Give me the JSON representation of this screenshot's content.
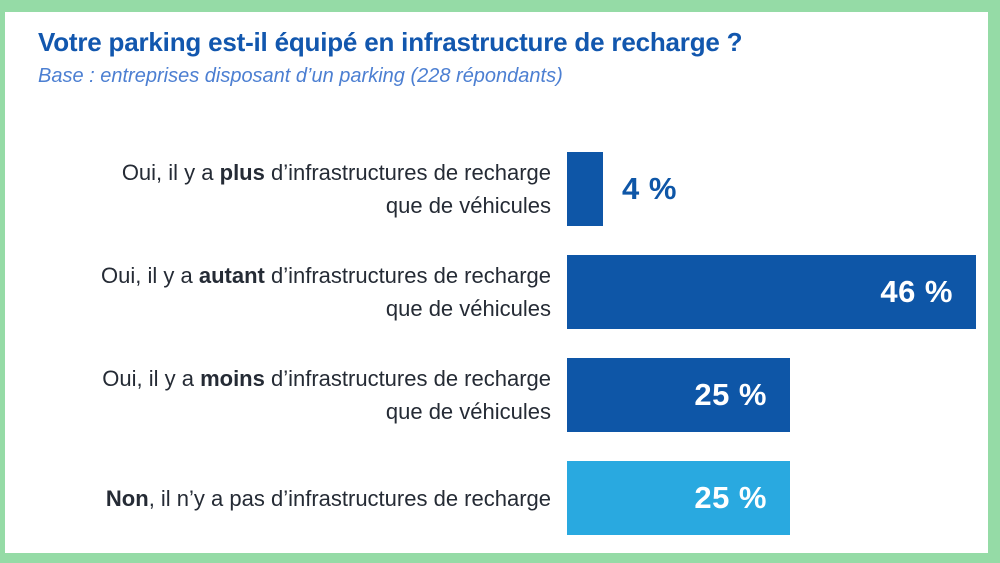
{
  "frame": {
    "border_color": "#95dba6",
    "background_color": "#ffffff"
  },
  "header": {
    "title": "Votre parking est-il équipé en infrastructure de recharge ?",
    "subtitle": "Base : entreprises disposant d’un parking (228 répondants)",
    "title_color": "#1257ae",
    "subtitle_color": "#4c7fd2"
  },
  "chart_data": {
    "type": "bar",
    "orientation": "horizontal",
    "unit": "%",
    "xlim": [
      0,
      50
    ],
    "grid": false,
    "legend": false,
    "title": "Votre parking est-il équipé en infrastructure de recharge ?",
    "subtitle": "Base : entreprises disposant d’un parking (228 répondants)",
    "categories": [
      "Oui, il y a plus d’infrastructures de recharge que de véhicules",
      "Oui, il y a autant d’infrastructures de recharge que de véhicules",
      "Oui, il y a moins d’infrastructures de recharge que de véhicules",
      "Non, il n’y a pas d’infrastructures de recharge"
    ],
    "values": [
      4,
      46,
      25,
      25
    ],
    "colors": {
      "primary_bar": "#0e56a7",
      "secondary_bar": "#29a9e0",
      "label_text": "#252b35",
      "value_on_bar": "#ffffff"
    },
    "rows": [
      {
        "label_pre": "Oui, il y a ",
        "label_bold": "plus",
        "label_post": " d’infrastructures de recharge",
        "label_line2": "que de véhicules",
        "value": 4,
        "value_label": "4 %",
        "bar_color": "#0e56a7",
        "value_position": "outside"
      },
      {
        "label_pre": "Oui, il y a ",
        "label_bold": "autant",
        "label_post": " d’infrastructures de recharge",
        "label_line2": "que de véhicules",
        "value": 46,
        "value_label": "46 %",
        "bar_color": "#0e56a7",
        "value_position": "inside"
      },
      {
        "label_pre": "Oui, il y a ",
        "label_bold": "moins",
        "label_post": " d’infrastructures de recharge",
        "label_line2": "que de véhicules",
        "value": 25,
        "value_label": "25 %",
        "bar_color": "#0e56a7",
        "value_position": "inside"
      },
      {
        "label_pre": "",
        "label_bold": "Non",
        "label_post": ", il n’y a pas d’infrastructures de recharge",
        "label_line2": "",
        "value": 25,
        "value_label": "25 %",
        "bar_color": "#29a9e0",
        "value_position": "inside"
      }
    ]
  }
}
